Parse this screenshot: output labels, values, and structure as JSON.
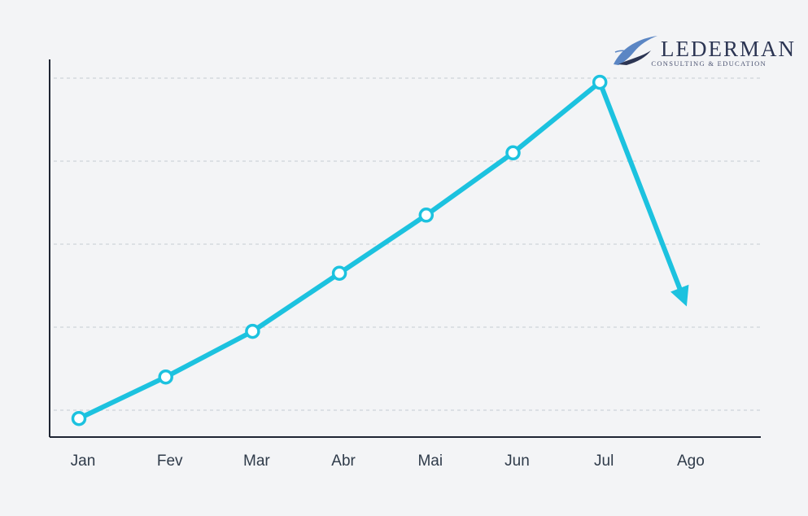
{
  "brand": {
    "name": "Lederman",
    "tagline": "Consulting & Education",
    "colors": {
      "text": "#2c3553",
      "swoosh": "#5b86c4"
    }
  },
  "chart_data": {
    "type": "line",
    "title": "",
    "xlabel": "",
    "ylabel": "",
    "categories": [
      "Jan",
      "Fev",
      "Mar",
      "Abr",
      "Mai",
      "Jun",
      "Jul",
      "Ago"
    ],
    "series": [
      {
        "values": [
          0.4,
          0.9,
          1.45,
          2.15,
          2.85,
          3.6,
          4.45,
          1.75
        ]
      }
    ],
    "trend_arrow_on_last_point": true,
    "ylim": [
      0,
      5
    ],
    "y_ticks_labeled": false,
    "grid": {
      "horizontal": true,
      "style": "dashed"
    },
    "legend": "none",
    "colors": {
      "line": "#1cc2df",
      "marker_fill": "#ffffff",
      "grid": "#cfd3da",
      "axis": "#1f2533"
    }
  }
}
